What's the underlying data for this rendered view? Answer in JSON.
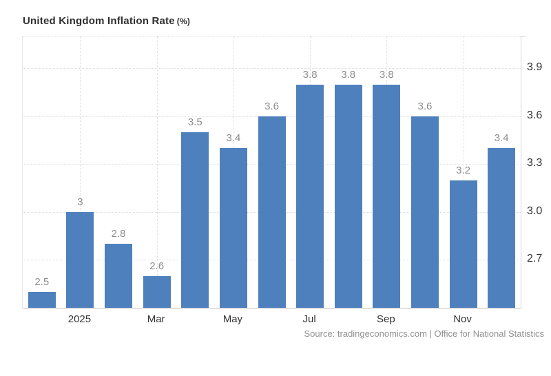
{
  "title": {
    "main": "United Kingdom Inflation Rate",
    "unit": "(%)"
  },
  "source": "Source: tradingeconomics.com | Office for National Statistics",
  "colors": {
    "bar": "#4e80bd",
    "grid": "#dcdcdc",
    "axis_border": "#c9c9c9",
    "value_label": "#8d8d8d",
    "tick_label": "#333333",
    "title": "#2e2e2e",
    "source": "#909090",
    "background": "#ffffff"
  },
  "chart_data": {
    "type": "bar",
    "title": "United Kingdom Inflation Rate (%)",
    "values": [
      2.5,
      3,
      2.8,
      2.6,
      3.5,
      3.4,
      3.6,
      3.8,
      3.8,
      3.8,
      3.6,
      3.2,
      3.4
    ],
    "value_labels": [
      "2.5",
      "3",
      "2.8",
      "2.6",
      "3.5",
      "3.4",
      "3.6",
      "3.8",
      "3.8",
      "3.8",
      "3.6",
      "3.2",
      "3.4"
    ],
    "x_ticks": [
      {
        "index": 1,
        "label": "2025"
      },
      {
        "index": 3,
        "label": "Mar"
      },
      {
        "index": 5,
        "label": "May"
      },
      {
        "index": 7,
        "label": "Jul"
      },
      {
        "index": 9,
        "label": "Sep"
      },
      {
        "index": 11,
        "label": "Nov"
      }
    ],
    "y_ticks": [
      {
        "value": 3.9,
        "label": "3.9"
      },
      {
        "value": 3.6,
        "label": "3.6"
      },
      {
        "value": 3.3,
        "label": "3.3"
      },
      {
        "value": 3.0,
        "label": "3.0"
      },
      {
        "value": 2.7,
        "label": "2.7"
      }
    ],
    "ylim": [
      2.4,
      4.1
    ],
    "xlabel": "",
    "ylabel": "",
    "grid": "dotted",
    "y_axis_position": "right",
    "legend": "none",
    "bar_color": "#4e80bd"
  }
}
